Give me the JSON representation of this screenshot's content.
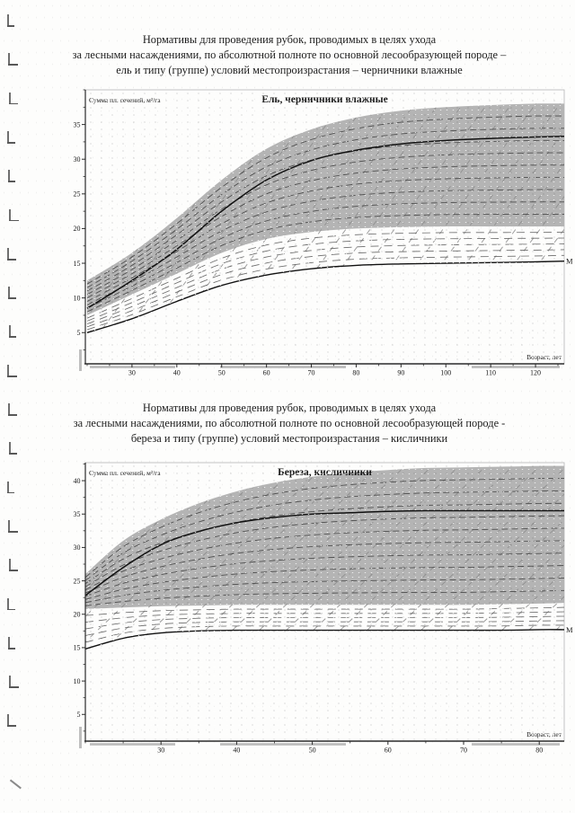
{
  "document": {
    "headings": [
      {
        "lines": [
          "Нормативы для проведения рубок, проводимых в целях ухода",
          "за лесными насаждениями, по абсолютной полноте по основной лесообразующей породе –",
          "ель и типу (группе) условий местопроизрастания – черничники влажные"
        ]
      },
      {
        "lines": [
          "Нормативы для проведения рубок, проводимых в целях ухода",
          "за лесными насаждениями, по абсолютной полноте по основной лесообразующей породе -",
          "береза и типу (группе) условий местопроизрастания – кисличники"
        ]
      }
    ]
  },
  "colors": {
    "band": "#b4b4b4",
    "solid_curve": "#111111",
    "dashed_curve": "#3f3f3f",
    "fan_curve": "#5c5c5c",
    "diagonal": "#8c8c8c",
    "axis": "#2b2b2b",
    "frame": "#9c9c9c",
    "text": "#1a1a1a",
    "smudge": "#aeaeae"
  },
  "chart_data": [
    {
      "type": "line",
      "title": "Ель, черничники влажные",
      "ylabel": "Сумма пл. сечений, м²/га",
      "xlabel": "Возраст, лет",
      "min_curve_label": "М",
      "xlim": [
        19.6,
        126.4
      ],
      "ylim": [
        0.5,
        40
      ],
      "xticks": [
        30,
        40,
        50,
        60,
        70,
        80,
        90,
        100,
        110,
        120
      ],
      "yticks": [
        5,
        10,
        15,
        20,
        25,
        30,
        35
      ],
      "grid": false,
      "legend": null,
      "x_ages": [
        20,
        30,
        40,
        50,
        60,
        70,
        80,
        90,
        100,
        110,
        120,
        126.4
      ],
      "series": {
        "upper_bound": [
          12.5,
          16.5,
          21.5,
          27.0,
          31.5,
          34.3,
          36.0,
          37.0,
          37.5,
          37.8,
          38.0,
          38.0
        ],
        "lower_bound": [
          7.5,
          10.5,
          13.5,
          16.5,
          18.5,
          19.5,
          20.0,
          20.2,
          20.3,
          20.3,
          20.3,
          20.3
        ],
        "mean_curve": [
          8.5,
          12.5,
          17.0,
          22.5,
          27.0,
          29.8,
          31.3,
          32.2,
          32.7,
          33.0,
          33.2,
          33.3
        ],
        "min_curve": [
          5.0,
          7.0,
          9.5,
          11.8,
          13.3,
          14.2,
          14.7,
          14.9,
          15.0,
          15.1,
          15.2,
          15.3
        ]
      },
      "band_between": [
        "upper_bound",
        "lower_bound"
      ],
      "solid_curves": [
        "mean_curve",
        "min_curve"
      ],
      "dashed_families": [
        {
          "between": [
            "lower_bound",
            "upper_bound"
          ],
          "count": 9
        },
        {
          "between": [
            "min_curve",
            "lower_bound"
          ],
          "count": 5
        }
      ],
      "diagonal_hatch": {
        "slope": 1.35,
        "spacing": 27
      }
    },
    {
      "type": "line",
      "title": "Береза, кисличники",
      "ylabel": "Сумма пл. сечений, м²/га",
      "xlabel": "Возраст, лет",
      "min_curve_label": "М",
      "xlim": [
        20,
        83.3
      ],
      "ylim": [
        1,
        42.7
      ],
      "xticks": [
        30,
        40,
        50,
        60,
        70,
        80
      ],
      "yticks": [
        5,
        10,
        15,
        20,
        25,
        30,
        35,
        40
      ],
      "grid": false,
      "legend": null,
      "x_ages": [
        20,
        25,
        30,
        35,
        40,
        45,
        50,
        55,
        60,
        65,
        70,
        75,
        80,
        83.3
      ],
      "series": {
        "upper_bound": [
          26.0,
          31.0,
          34.2,
          36.6,
          38.4,
          39.7,
          40.6,
          41.2,
          41.6,
          41.9,
          42.0,
          42.1,
          42.2,
          42.2
        ],
        "lower_bound": [
          20.8,
          21.0,
          21.2,
          21.3,
          21.4,
          21.4,
          21.4,
          21.4,
          21.4,
          21.4,
          21.4,
          21.5,
          21.6,
          21.7
        ],
        "mean_curve": [
          22.8,
          27.0,
          30.4,
          32.4,
          33.7,
          34.5,
          35.0,
          35.2,
          35.4,
          35.5,
          35.5,
          35.5,
          35.5,
          35.5
        ],
        "min_curve": [
          14.8,
          16.4,
          17.2,
          17.5,
          17.6,
          17.6,
          17.6,
          17.6,
          17.6,
          17.6,
          17.6,
          17.6,
          17.7,
          17.7
        ]
      },
      "band_between": [
        "upper_bound",
        "lower_bound"
      ],
      "solid_curves": [
        "mean_curve",
        "min_curve"
      ],
      "dashed_families": [
        {
          "between": [
            "lower_bound",
            "upper_bound"
          ],
          "count": 10
        },
        {
          "between": [
            "min_curve",
            "lower_bound"
          ],
          "count": 5
        }
      ],
      "diagonal_hatch": {
        "slope": 0.95,
        "spacing": 30
      }
    }
  ]
}
